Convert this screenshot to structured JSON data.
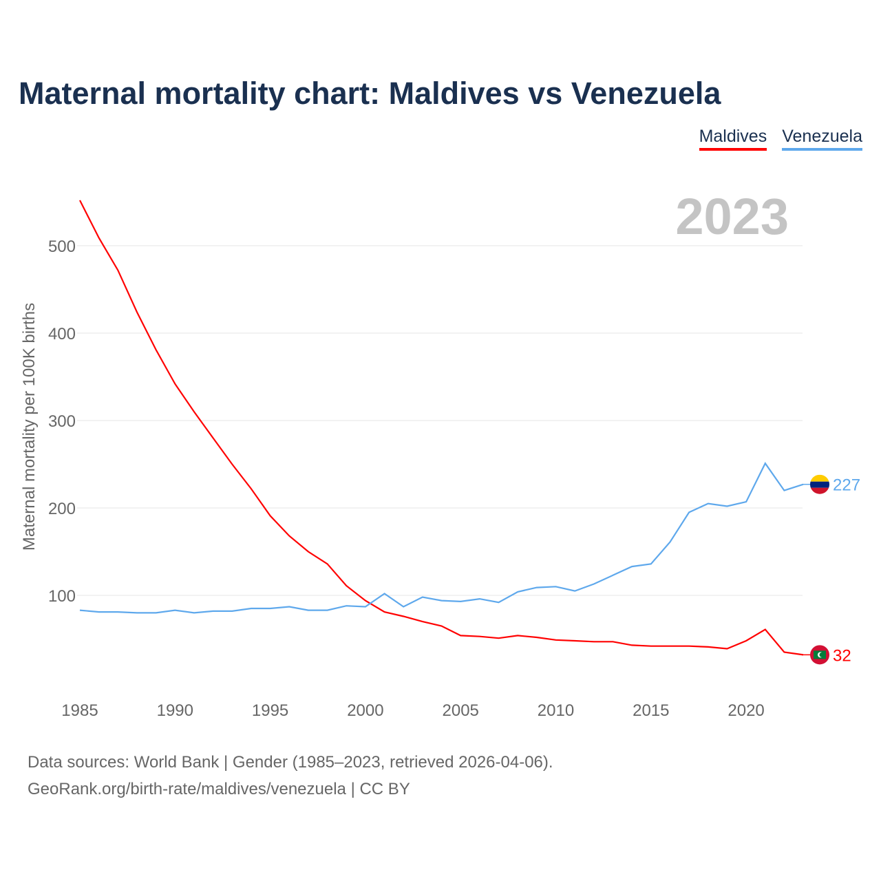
{
  "chart_data": {
    "type": "line",
    "title": "Maternal mortality chart: Maldives vs Venezuela",
    "ylabel": "Maternal mortality per 100K births",
    "xlabel": "",
    "year_label": "2023",
    "xlim": [
      1985,
      2023
    ],
    "ylim": [
      0,
      560
    ],
    "x_ticks": [
      1985,
      1990,
      1995,
      2000,
      2005,
      2010,
      2015,
      2020
    ],
    "y_ticks": [
      100,
      200,
      300,
      400,
      500
    ],
    "grid": true,
    "legend_position": "top-right",
    "x": [
      1985,
      1986,
      1987,
      1988,
      1989,
      1990,
      1991,
      1992,
      1993,
      1994,
      1995,
      1996,
      1997,
      1998,
      1999,
      2000,
      2001,
      2002,
      2003,
      2004,
      2005,
      2006,
      2007,
      2008,
      2009,
      2010,
      2011,
      2012,
      2013,
      2014,
      2015,
      2016,
      2017,
      2018,
      2019,
      2020,
      2021,
      2022,
      2023
    ],
    "series": [
      {
        "name": "Maldives",
        "color": "#ff0000",
        "end_label": "32",
        "values": [
          552,
          509,
          472,
          424,
          381,
          342,
          310,
          280,
          250,
          222,
          191,
          168,
          150,
          136,
          111,
          94,
          81,
          76,
          70,
          65,
          54,
          53,
          51,
          54,
          52,
          49,
          48,
          47,
          47,
          43,
          42,
          42,
          42,
          41,
          39,
          48,
          61,
          35,
          32
        ]
      },
      {
        "name": "Venezuela",
        "color": "#5ea8ec",
        "end_label": "227",
        "values": [
          83,
          81,
          81,
          80,
          80,
          83,
          80,
          82,
          82,
          85,
          85,
          87,
          83,
          83,
          88,
          87,
          102,
          87,
          98,
          94,
          93,
          96,
          92,
          104,
          109,
          110,
          105,
          113,
          123,
          133,
          136,
          161,
          195,
          205,
          202,
          207,
          251,
          220,
          227
        ]
      }
    ]
  },
  "footer": {
    "line1": "Data sources: World Bank | Gender (1985–2023, retrieved 2026-04-06).",
    "line2": "GeoRank.org/birth-rate/maldives/venezuela | CC BY"
  }
}
